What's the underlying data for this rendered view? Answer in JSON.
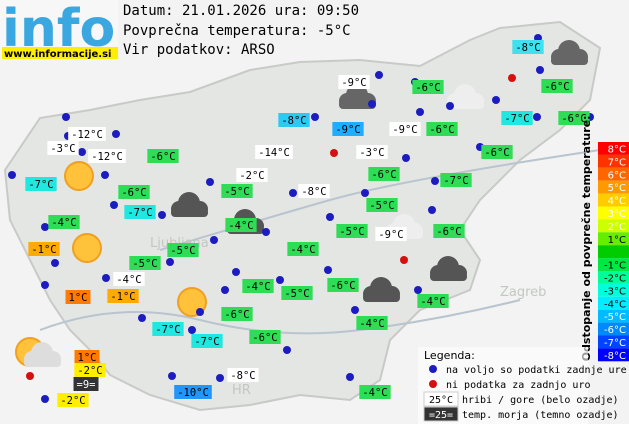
{
  "header": {
    "logo": "info",
    "site": "www.informacije.si",
    "date_line": "Datum: 21.01.2026 ura: 09:50",
    "avg_line": "Povprečna temperatura: -5°C",
    "source_line": "Vir podatkov: ARSO"
  },
  "places": [
    "Ljubljana",
    "Zagreb",
    "HR"
  ],
  "stations": [
    {
      "label": "-8°C",
      "bg": "#3fe0ef"
    },
    {
      "label": "-9°C",
      "bg": "#ffffff"
    },
    {
      "label": "-6°C",
      "bg": "#2fdc55"
    },
    {
      "label": "-6°C",
      "bg": "#2fdc55"
    },
    {
      "label": "-8°C",
      "bg": "#2fc8f2"
    },
    {
      "label": "-9°C",
      "bg": "#1faeff"
    },
    {
      "label": "-9°C",
      "bg": "#ffffff"
    },
    {
      "label": "-6°C",
      "bg": "#2fdc55"
    },
    {
      "label": "-7°C",
      "bg": "#22e6e0"
    },
    {
      "label": "-6°C",
      "bg": "#2fdc55"
    },
    {
      "label": "-12°C",
      "bg": "#ffffff"
    },
    {
      "label": "-3°C",
      "bg": "#ffffff"
    },
    {
      "label": "-12°C",
      "bg": "#ffffff"
    },
    {
      "label": "-6°C",
      "bg": "#2fdc55"
    },
    {
      "label": "-14°C",
      "bg": "#ffffff"
    },
    {
      "label": "-3°C",
      "bg": "#ffffff"
    },
    {
      "label": "-6°C",
      "bg": "#2fdc55"
    },
    {
      "label": "-7°C",
      "bg": "#22e6e0"
    },
    {
      "label": "-6°C",
      "bg": "#2fdc55"
    },
    {
      "label": "-2°C",
      "bg": "#ffffff"
    },
    {
      "label": "-6°C",
      "bg": "#2fdc55"
    },
    {
      "label": "-7°C",
      "bg": "#2fdc55"
    },
    {
      "label": "-5°C",
      "bg": "#2fdc55"
    },
    {
      "label": "-8°C",
      "bg": "#ffffff"
    },
    {
      "label": "-7°C",
      "bg": "#22e6e0"
    },
    {
      "label": "-5°C",
      "bg": "#2fdc55"
    },
    {
      "label": "-4°C",
      "bg": "#2fdc55"
    },
    {
      "label": "-4°C",
      "bg": "#2fdc55"
    },
    {
      "label": "-5°C",
      "bg": "#2fdc55"
    },
    {
      "label": "-9°C",
      "bg": "#ffffff"
    },
    {
      "label": "-6°C",
      "bg": "#2fdc55"
    },
    {
      "label": "-1°C",
      "bg": "#ffaa00"
    },
    {
      "label": "-5°C",
      "bg": "#2fdc55"
    },
    {
      "label": "-4°C",
      "bg": "#2fdc55"
    },
    {
      "label": "-5°C",
      "bg": "#2fdc55"
    },
    {
      "label": "-4°C",
      "bg": "#ffffff"
    },
    {
      "label": "-4°C",
      "bg": "#2fdc55"
    },
    {
      "label": "-6°C",
      "bg": "#2fdc55"
    },
    {
      "label": "-5°C",
      "bg": "#2fdc55"
    },
    {
      "label": "1°C",
      "bg": "#ff7a00"
    },
    {
      "label": "-1°C",
      "bg": "#ffaa00"
    },
    {
      "label": "-4°C",
      "bg": "#2fdc55"
    },
    {
      "label": "-6°C",
      "bg": "#2fdc55"
    },
    {
      "label": "-4°C",
      "bg": "#2fdc55"
    },
    {
      "label": "-7°C",
      "bg": "#22e6e0"
    },
    {
      "label": "-7°C",
      "bg": "#22e6e0"
    },
    {
      "label": "-6°C",
      "bg": "#2fdc55"
    },
    {
      "label": "1°C",
      "bg": "#ff7a00"
    },
    {
      "label": "-2°C",
      "bg": "#ffee00"
    },
    {
      "label": "=9=",
      "bg": "#333333"
    },
    {
      "label": "-2°C",
      "bg": "#ffee00"
    },
    {
      "label": "-8°C",
      "bg": "#ffffff"
    },
    {
      "label": "-10°C",
      "bg": "#2296ff"
    },
    {
      "label": "-4°C",
      "bg": "#2fdc55"
    }
  ],
  "scale": {
    "title": "Odstopanje od povprečne temperature:",
    "steps": [
      {
        "label": "8°C",
        "color": "#ff0000"
      },
      {
        "label": "7°C",
        "color": "#ff3300"
      },
      {
        "label": "6°C",
        "color": "#ff6600"
      },
      {
        "label": "5°C",
        "color": "#ff9900"
      },
      {
        "label": "4°C",
        "color": "#ffcc00"
      },
      {
        "label": "3°C",
        "color": "#ffff00"
      },
      {
        "label": "2°C",
        "color": "#ccff00"
      },
      {
        "label": "1°C",
        "color": "#66ee00"
      },
      {
        "label": null,
        "color": "#00cc00"
      },
      {
        "label": "-1°C",
        "color": "#00e844"
      },
      {
        "label": "-2°C",
        "color": "#00ff99"
      },
      {
        "label": "-3°C",
        "color": "#00ffdd"
      },
      {
        "label": "-4°C",
        "color": "#00eeff"
      },
      {
        "label": "-5°C",
        "color": "#00bbff"
      },
      {
        "label": "-6°C",
        "color": "#0088ff"
      },
      {
        "label": "-7°C",
        "color": "#0044ff"
      },
      {
        "label": "-8°C",
        "color": "#0000ff"
      }
    ]
  },
  "legend": {
    "title": "Legenda:",
    "dots": [
      {
        "color": "#1c1cc0",
        "text": "na voljo so podatki zadnje ure"
      },
      {
        "color": "#d41010",
        "text": "ni podatka za zadnjo uro"
      }
    ],
    "boxes": [
      {
        "sample": "25°C",
        "bg": "#ffffff",
        "fg": "#000000",
        "text": "hribi / gore (belo ozadje)"
      },
      {
        "sample": "=25=",
        "bg": "#333333",
        "fg": "#ffffff",
        "text": "temp. morja (temno ozadje)"
      }
    ]
  }
}
